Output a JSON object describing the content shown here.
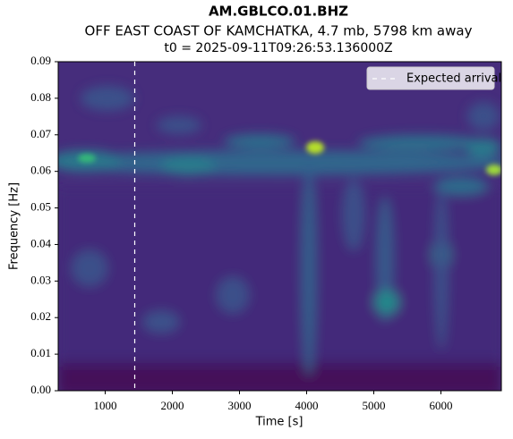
{
  "chart_data": {
    "type": "spectrogram",
    "title": "AM.GBLCO.01.BHZ",
    "subtitle": "OFF EAST COAST OF KAMCHATKA, 4.7 mb, 5798 km away",
    "annotation": "t0 = 2025-09-11T09:26:53.136000Z",
    "xlabel": "Time [s]",
    "ylabel": "Frequency [Hz]",
    "xlim": [
      300,
      6900
    ],
    "ylim": [
      0,
      0.09
    ],
    "xticks": [
      1000,
      2000,
      3000,
      4000,
      5000,
      6000
    ],
    "yticks": [
      {
        "value": 0,
        "label": "0.00"
      },
      {
        "value": 0.01,
        "label": "0.01"
      },
      {
        "value": 0.02,
        "label": "0.02"
      },
      {
        "value": 0.03,
        "label": "0.03"
      },
      {
        "value": 0.04,
        "label": "0.04"
      },
      {
        "value": 0.05,
        "label": "0.05"
      },
      {
        "value": 0.06,
        "label": "0.06"
      },
      {
        "value": 0.07,
        "label": "0.07"
      },
      {
        "value": 0.08,
        "label": "0.08"
      },
      {
        "value": 0.09,
        "label": "0.09"
      }
    ],
    "expected_arrival": {
      "label": "Expected arrival",
      "x": 1440
    },
    "legend": "upper right"
  }
}
